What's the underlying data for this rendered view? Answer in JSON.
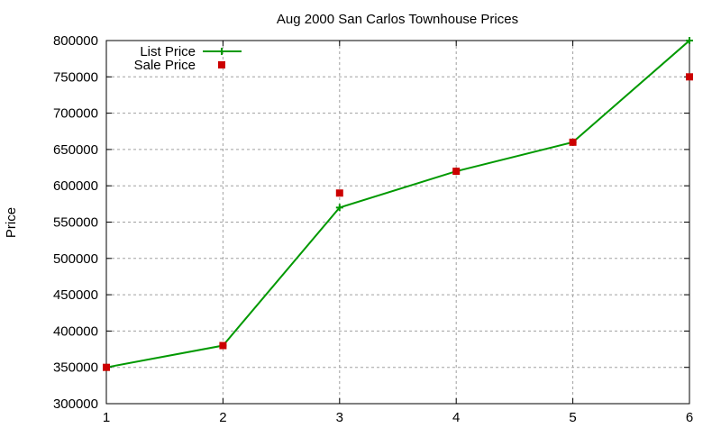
{
  "chart_data": {
    "type": "line",
    "title": "Aug 2000 San Carlos Townhouse Prices",
    "xlabel": "",
    "ylabel": "Price",
    "x": [
      1,
      2,
      3,
      4,
      5,
      6
    ],
    "xlim": [
      1,
      6
    ],
    "ylim": [
      300000,
      800000
    ],
    "xticks": [
      "1",
      "2",
      "3",
      "4",
      "5",
      "6"
    ],
    "yticks": [
      "300000",
      "350000",
      "400000",
      "450000",
      "500000",
      "550000",
      "600000",
      "650000",
      "700000",
      "750000",
      "800000"
    ],
    "grid": true,
    "legend_position": "top-left",
    "series": [
      {
        "name": "List Price",
        "style": "linespoints",
        "color": "#009900",
        "values": [
          350000,
          380000,
          570000,
          620000,
          660000,
          800000
        ]
      },
      {
        "name": "Sale Price",
        "style": "points",
        "color": "#cc0000",
        "values": [
          350000,
          380000,
          590000,
          620000,
          660000,
          750000
        ]
      }
    ]
  }
}
